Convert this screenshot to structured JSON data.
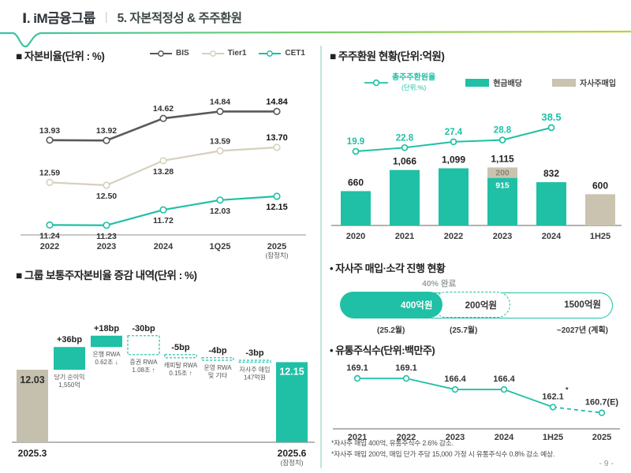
{
  "header": {
    "section": "Ⅰ. iM금융그룹",
    "divider": "|",
    "title": "5. 자본적정성 & 주주환원"
  },
  "colors": {
    "teal": "#1fc0a5",
    "beige": "#c9c3b0",
    "tier1": "#d6d0bd",
    "bis": "#58595b",
    "axis_gray": "#b5b5b5",
    "swoosh_left": "#35c4a4",
    "swoosh_right": "#b9d437"
  },
  "sections": {
    "capital_ratio": {
      "title": "■ 자본비율(단위 : %)",
      "legend": [
        {
          "label": "BIS",
          "color": "#58595b"
        },
        {
          "label": "Tier1",
          "color": "#d6d0bd"
        },
        {
          "label": "CET1",
          "color": "#1fc0a5"
        }
      ]
    },
    "shareholder_return": {
      "title": "■ 주주환원 현황(단위:억원)",
      "legend": {
        "line": "총주주환원율",
        "line_sub": "(단위:%)",
        "bar1": "현금배당",
        "bar2": "자사주매입"
      }
    },
    "bridge": {
      "title": "■ 그룹 보통주자본비율 증감 내역(단위 : %)"
    },
    "buyback": {
      "title": "• 자사주 매입·소각 진행 현황",
      "progress_label": "40% 완료",
      "segments": [
        {
          "amount": "400억원",
          "date": "(25.2월)",
          "style": "filled"
        },
        {
          "amount": "200억원",
          "date": "(25.7월)",
          "style": "dashed"
        },
        {
          "amount": "1500억원",
          "date": "~2027년 (계획)",
          "style": "outline"
        }
      ]
    },
    "shares": {
      "title": "• 유통주식수(단위:백만주)",
      "notes": [
        "*자사주 매입 400억, 유통주식수 2.6% 감소.",
        "*자사주 매입 200억, 매입 단가 주당 15,000 가정 시 유통주식수 0.8% 감소 예상."
      ]
    }
  },
  "chart_data": [
    {
      "id": "capital_ratio",
      "type": "line",
      "title": "자본비율(단위 : %)",
      "categories": [
        "2022",
        "2023",
        "2024",
        "1Q25",
        "2025"
      ],
      "last_sub": "(잠정치)",
      "series": [
        {
          "name": "BIS",
          "values": [
            13.93,
            13.92,
            14.62,
            14.84,
            14.84
          ]
        },
        {
          "name": "Tier1",
          "values": [
            12.59,
            12.5,
            13.28,
            13.59,
            13.7
          ]
        },
        {
          "name": "CET1",
          "values": [
            11.24,
            11.23,
            11.72,
            12.03,
            12.15
          ]
        }
      ],
      "ylim": [
        11.0,
        15.3
      ]
    },
    {
      "id": "shareholder_return",
      "type": "bar+line",
      "title": "주주환원 현황(단위:억원)",
      "categories": [
        "2020",
        "2021",
        "2022",
        "2023",
        "2024",
        "1H25"
      ],
      "series": [
        {
          "name": "현금배당",
          "values": [
            660,
            1066,
            1099,
            915,
            832,
            0
          ],
          "color_key": "teal"
        },
        {
          "name": "자사주매입",
          "values": [
            0,
            0,
            0,
            200,
            0,
            600
          ],
          "color_key": "beige"
        }
      ],
      "totals": [
        "660",
        "1,066",
        "1,099",
        "1,115",
        "832",
        "600"
      ],
      "stack_labels": {
        "3": {
          "top": "200",
          "bottom": "915"
        }
      },
      "line": {
        "name": "총주주환원율(단위:%)",
        "values": [
          19.9,
          22.8,
          27.4,
          28.8,
          38.5
        ]
      }
    },
    {
      "id": "cet1_bridge",
      "type": "waterfall",
      "title": "그룹 보통주자본비율 증감 내역(단위 : %)",
      "start": {
        "value": "12.03",
        "axis": "2025.3"
      },
      "end": {
        "value": "12.15",
        "axis": "2025.6",
        "axis_sub": "(잠정치)"
      },
      "steps": [
        {
          "delta": "+36bp",
          "delta_bp": 36,
          "label": "당기 순이익\n1,550억",
          "type": "up"
        },
        {
          "delta": "+18bp",
          "delta_bp": 18,
          "label": "은행 RWA\n0.62조 ↓",
          "type": "up"
        },
        {
          "delta": "-30bp",
          "delta_bp": -30,
          "label": "증권 RWA\n1.08조 ↑",
          "type": "down"
        },
        {
          "delta": "-5bp",
          "delta_bp": -5,
          "label": "캐피탈 RWA\n0.15조 ↑",
          "type": "down"
        },
        {
          "delta": "-4bp",
          "delta_bp": -4,
          "label": "운영 RWA\n및 기타",
          "type": "down"
        },
        {
          "delta": "-3bp",
          "delta_bp": -3,
          "label": "자사주 매입\n147억원",
          "type": "down"
        }
      ]
    },
    {
      "id": "shares_outstanding",
      "type": "line",
      "title": "유통주식수(단위:백만주)",
      "categories": [
        "2021",
        "2022",
        "2023",
        "2024",
        "1H25",
        "2025"
      ],
      "values": [
        169.1,
        169.1,
        166.4,
        166.4,
        162.1,
        160.7
      ],
      "labels": [
        "169.1",
        "169.1",
        "166.4",
        "166.4",
        "162.1",
        "160.7(E)"
      ],
      "label_sups": [
        "",
        "",
        "",
        "",
        "*",
        "**"
      ],
      "dashed_from": 4
    }
  ],
  "footer": {
    "page": "- 9 -"
  }
}
